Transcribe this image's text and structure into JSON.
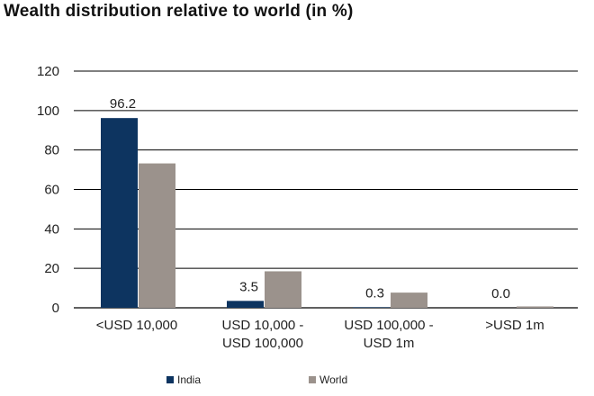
{
  "chart_data": {
    "type": "bar",
    "title": "Wealth distribution relative to world (in %)",
    "xlabel": "",
    "ylabel": "",
    "ylim": [
      0,
      120
    ],
    "yticks": [
      0,
      20,
      40,
      60,
      80,
      100,
      120
    ],
    "grid": true,
    "legend_position": "bottom",
    "categories": [
      [
        "<USD 10,000"
      ],
      [
        "USD 10,000 -",
        "USD 100,000"
      ],
      [
        "USD 100,000 -",
        "USD 1m"
      ],
      [
        ">USD 1m"
      ]
    ],
    "series": [
      {
        "name": "India",
        "color": "#0d3460",
        "values": [
          96.2,
          3.5,
          0.3,
          0.0
        ],
        "data_labels": [
          "96.2",
          "3.5",
          "0.3",
          "0.0"
        ]
      },
      {
        "name": "World",
        "color": "#9b928c",
        "values": [
          73.2,
          18.5,
          7.7,
          0.7
        ]
      }
    ]
  }
}
